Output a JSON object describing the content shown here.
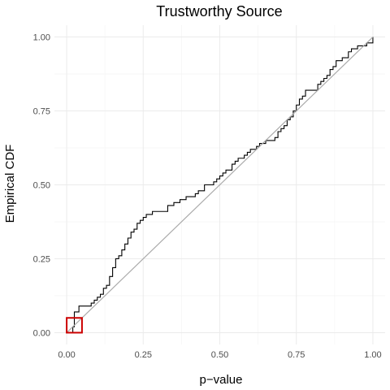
{
  "chart_data": {
    "type": "line",
    "title": "Trustworthy Source",
    "xlabel": "p−value",
    "ylabel": "Empirical CDF",
    "xlim": [
      -0.04,
      1.04
    ],
    "ylim": [
      -0.04,
      1.04
    ],
    "x_ticks": [
      0.0,
      0.25,
      0.5,
      0.75,
      1.0
    ],
    "x_tick_labels": [
      "0.00",
      "0.25",
      "0.50",
      "0.75",
      "1.00"
    ],
    "y_ticks": [
      0.0,
      0.25,
      0.5,
      0.75,
      1.0
    ],
    "y_tick_labels": [
      "0.00",
      "0.25",
      "0.50",
      "0.75",
      "1.00"
    ],
    "grid": true,
    "series": [
      {
        "style": "step",
        "color": "#000000",
        "x": [
          0.0,
          0.02,
          0.025,
          0.04,
          0.06,
          0.08,
          0.09,
          0.1,
          0.11,
          0.12,
          0.13,
          0.14,
          0.15,
          0.16,
          0.17,
          0.18,
          0.19,
          0.2,
          0.21,
          0.22,
          0.23,
          0.24,
          0.25,
          0.26,
          0.27,
          0.28,
          0.29,
          0.3,
          0.33,
          0.34,
          0.35,
          0.37,
          0.39,
          0.4,
          0.42,
          0.43,
          0.45,
          0.46,
          0.48,
          0.49,
          0.5,
          0.51,
          0.52,
          0.54,
          0.55,
          0.56,
          0.58,
          0.59,
          0.6,
          0.62,
          0.63,
          0.65,
          0.68,
          0.69,
          0.7,
          0.71,
          0.72,
          0.73,
          0.74,
          0.75,
          0.76,
          0.77,
          0.78,
          0.82,
          0.83,
          0.84,
          0.85,
          0.86,
          0.87,
          0.88,
          0.9,
          0.92,
          0.93,
          0.95,
          0.98,
          0.99,
          1.0
        ],
        "y": [
          0.0,
          0.02,
          0.07,
          0.09,
          0.09,
          0.1,
          0.11,
          0.12,
          0.13,
          0.15,
          0.16,
          0.19,
          0.22,
          0.25,
          0.26,
          0.28,
          0.3,
          0.32,
          0.34,
          0.35,
          0.37,
          0.38,
          0.39,
          0.4,
          0.4,
          0.41,
          0.41,
          0.41,
          0.43,
          0.43,
          0.44,
          0.45,
          0.46,
          0.46,
          0.47,
          0.48,
          0.5,
          0.5,
          0.51,
          0.52,
          0.53,
          0.54,
          0.55,
          0.57,
          0.58,
          0.59,
          0.6,
          0.61,
          0.62,
          0.63,
          0.64,
          0.65,
          0.66,
          0.68,
          0.69,
          0.7,
          0.72,
          0.73,
          0.75,
          0.77,
          0.79,
          0.8,
          0.82,
          0.84,
          0.85,
          0.86,
          0.87,
          0.89,
          0.9,
          0.92,
          0.93,
          0.95,
          0.96,
          0.97,
          0.98,
          0.98,
          1.0
        ]
      },
      {
        "style": "reference-line",
        "color": "#aaaaaa",
        "x": [
          0.0,
          1.0
        ],
        "y": [
          0.0,
          1.0
        ]
      }
    ],
    "highlight_box": {
      "color": "#cc0000",
      "x": [
        0.0,
        0.05
      ],
      "y": [
        0.0,
        0.05
      ]
    }
  }
}
